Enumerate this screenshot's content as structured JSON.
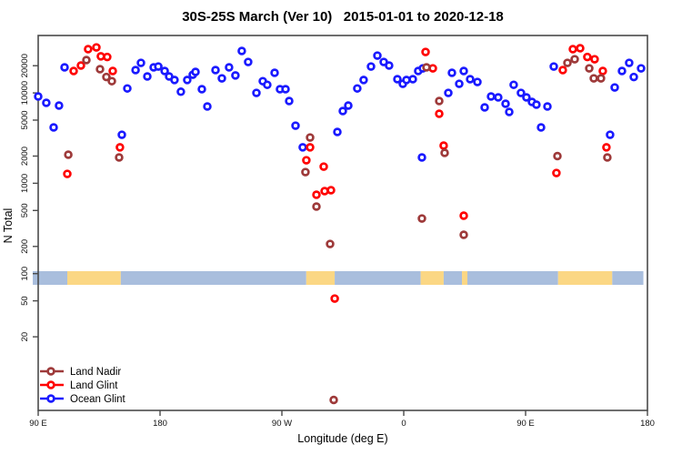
{
  "chart_data": {
    "type": "scatter",
    "title": "30S-25S March (Ver 10)   2015-01-01 to 2020-12-18",
    "xlabel": "Longitude (deg E)",
    "ylabel": "N Total",
    "x_axis": {
      "description": "longitude wrapped eastward from 90E, degrees along axis 0-450",
      "range": [
        0,
        450
      ],
      "ticks": [
        {
          "pos": 0,
          "label": "90 E"
        },
        {
          "pos": 90,
          "label": "180"
        },
        {
          "pos": 180,
          "label": "90 W"
        },
        {
          "pos": 270,
          "label": "0"
        },
        {
          "pos": 360,
          "label": "90 E"
        },
        {
          "pos": 450,
          "label": "180"
        }
      ]
    },
    "y_axis": {
      "scale": "log",
      "range": [
        3,
        43000
      ],
      "ticks": [
        {
          "value": 20,
          "label": "20"
        },
        {
          "value": 50,
          "label": "50"
        },
        {
          "value": 100,
          "label": "100"
        },
        {
          "value": 200,
          "label": "200"
        },
        {
          "value": 500,
          "label": "500"
        },
        {
          "value": 1000,
          "label": "1000"
        },
        {
          "value": 2000,
          "label": "2000"
        },
        {
          "value": 5000,
          "label": "5000"
        },
        {
          "value": 10000,
          "label": "10000"
        },
        {
          "value": 20000,
          "label": "20000"
        }
      ]
    },
    "legend": {
      "position": "bottom-left",
      "items": [
        {
          "label": "Land Nadir",
          "series": "land_nadir",
          "color": "#9e3a3a"
        },
        {
          "label": "Land Glint",
          "series": "land_glint",
          "color": "#ff0000"
        },
        {
          "label": "Ocean Glint",
          "series": "ocean_glint",
          "color": "#1a1aff"
        }
      ]
    },
    "surface_band": {
      "description": "land/ocean strip along latitude band",
      "n_top": 106,
      "n_bottom": 75,
      "colors": {
        "ocean": "#a9bedd",
        "land": "#fbd784"
      },
      "segments": [
        {
          "from": -4,
          "to": 21.5,
          "type": "ocean"
        },
        {
          "from": 21.5,
          "to": 61,
          "type": "land"
        },
        {
          "from": 61,
          "to": 198,
          "type": "ocean"
        },
        {
          "from": 198,
          "to": 219,
          "type": "land"
        },
        {
          "from": 219,
          "to": 282.5,
          "type": "ocean"
        },
        {
          "from": 282.5,
          "to": 299.5,
          "type": "land"
        },
        {
          "from": 299.5,
          "to": 313,
          "type": "ocean"
        },
        {
          "from": 313,
          "to": 317,
          "type": "land"
        },
        {
          "from": 317,
          "to": 384,
          "type": "ocean"
        },
        {
          "from": 384,
          "to": 424,
          "type": "land"
        },
        {
          "from": 424,
          "to": 447,
          "type": "ocean"
        }
      ]
    },
    "series": [
      {
        "name": "Ocean Glint",
        "key": "ocean_glint",
        "color": "#1a1aff",
        "points": [
          [
            19.5,
            19200
          ],
          [
            0,
            9140
          ],
          [
            6,
            7770
          ],
          [
            15.4,
            7240
          ],
          [
            11.4,
            4150
          ],
          [
            61.8,
            3440
          ],
          [
            65.8,
            11200
          ],
          [
            71.9,
            17900
          ],
          [
            75.9,
            21500
          ],
          [
            80.6,
            15200
          ],
          [
            85.3,
            19200
          ],
          [
            88.7,
            19600
          ],
          [
            93.4,
            17500
          ],
          [
            96.7,
            15200
          ],
          [
            100.7,
            13900
          ],
          [
            105.4,
            10300
          ],
          [
            110.1,
            13900
          ],
          [
            114.2,
            15900
          ],
          [
            116.2,
            17100
          ],
          [
            120.9,
            11000
          ],
          [
            124.9,
            7080
          ],
          [
            131,
            17900
          ],
          [
            135.7,
            14500
          ],
          [
            141,
            19200
          ],
          [
            145.7,
            15600
          ],
          [
            150.4,
            29100
          ],
          [
            155.1,
            22000
          ],
          [
            161.2,
            10000
          ],
          [
            165.9,
            13500
          ],
          [
            169.2,
            12300
          ],
          [
            174.6,
            16700
          ],
          [
            178.6,
            11000
          ],
          [
            182.7,
            11000
          ],
          [
            185.4,
            8130
          ],
          [
            190.1,
            4340
          ],
          [
            195.4,
            2500
          ],
          [
            221,
            3700
          ],
          [
            225,
            6310
          ],
          [
            229,
            7240
          ],
          [
            235.7,
            11200
          ],
          [
            240.4,
            13900
          ],
          [
            245.8,
            19600
          ],
          [
            250.5,
            25900
          ],
          [
            255.2,
            22000
          ],
          [
            259.2,
            20100
          ],
          [
            265.3,
            14200
          ],
          [
            269.3,
            12600
          ],
          [
            272,
            13900
          ],
          [
            276.7,
            14200
          ],
          [
            280.7,
            17500
          ],
          [
            284.1,
            18700
          ],
          [
            283.4,
            1930
          ],
          [
            302.9,
            10000
          ],
          [
            305.6,
            16700
          ],
          [
            311,
            12600
          ],
          [
            314.3,
            17500
          ],
          [
            319,
            14200
          ],
          [
            324.4,
            13200
          ],
          [
            329.8,
            6920
          ],
          [
            334.5,
            9140
          ],
          [
            339.8,
            8930
          ],
          [
            345.2,
            7590
          ],
          [
            347.9,
            6160
          ],
          [
            351.2,
            12300
          ],
          [
            356.6,
            10000
          ],
          [
            360.6,
            8930
          ],
          [
            364.7,
            7940
          ],
          [
            368,
            7410
          ],
          [
            376.1,
            7080
          ],
          [
            371.4,
            4150
          ],
          [
            380.8,
            19600
          ],
          [
            425.8,
            11500
          ],
          [
            422.4,
            3440
          ],
          [
            431.2,
            17500
          ],
          [
            436.5,
            21500
          ],
          [
            439.9,
            15000
          ],
          [
            445.3,
            18700
          ]
        ]
      },
      {
        "name": "Land Glint",
        "key": "land_glint",
        "color": "#ff0000",
        "points": [
          [
            26.2,
            17500
          ],
          [
            31.6,
            20100
          ],
          [
            36.9,
            30500
          ],
          [
            43,
            31900
          ],
          [
            46.3,
            25400
          ],
          [
            51,
            25000
          ],
          [
            55.1,
            17500
          ],
          [
            60.4,
            2500
          ],
          [
            21.5,
            1270
          ],
          [
            200.8,
            2500
          ],
          [
            198.1,
            1800
          ],
          [
            210.9,
            1530
          ],
          [
            211.6,
            819
          ],
          [
            205.5,
            746
          ],
          [
            216.3,
            838
          ],
          [
            219,
            53
          ],
          [
            286.1,
            28400
          ],
          [
            291.5,
            18700
          ],
          [
            296.2,
            5880
          ],
          [
            299.5,
            2610
          ],
          [
            314.3,
            438
          ],
          [
            387.5,
            17900
          ],
          [
            394.9,
            30500
          ],
          [
            400.3,
            31200
          ],
          [
            405.6,
            25000
          ],
          [
            411,
            23600
          ],
          [
            417,
            17500
          ],
          [
            419.7,
            2500
          ],
          [
            382.8,
            1300
          ]
        ]
      },
      {
        "name": "Land Nadir",
        "key": "land_nadir",
        "color": "#9e3a3a",
        "points": [
          [
            35.6,
            23100
          ],
          [
            45.7,
            18300
          ],
          [
            50.4,
            15000
          ],
          [
            54.4,
            13500
          ],
          [
            22.2,
            2070
          ],
          [
            59.8,
            1930
          ],
          [
            200.8,
            3210
          ],
          [
            197.4,
            1330
          ],
          [
            205.5,
            552
          ],
          [
            215.6,
            213
          ],
          [
            218.3,
            4
          ],
          [
            283.4,
            408
          ],
          [
            286.8,
            19200
          ],
          [
            296.2,
            8130
          ],
          [
            300.2,
            2170
          ],
          [
            314.3,
            269
          ],
          [
            390.9,
            21500
          ],
          [
            396.3,
            23600
          ],
          [
            407,
            18700
          ],
          [
            410.4,
            14500
          ],
          [
            415.7,
            14500
          ],
          [
            383.5,
            2000
          ],
          [
            420.4,
            1930
          ]
        ]
      }
    ]
  }
}
